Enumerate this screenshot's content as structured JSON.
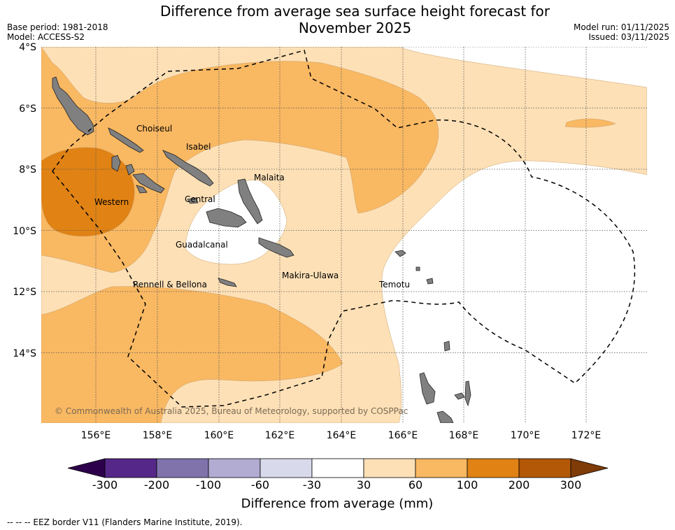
{
  "title": {
    "line1": "Difference from average sea surface height forecast for",
    "line2": "November 2025"
  },
  "meta": {
    "base_period": "Base period: 1981-2018",
    "model": "Model: ACCESS-S2",
    "model_run": "Model run: 01/11/2025",
    "issued": "Issued: 03/11/2025"
  },
  "map": {
    "lat_labels": [
      "4°S",
      "6°S",
      "8°S",
      "10°S",
      "12°S",
      "14°S"
    ],
    "lon_labels": [
      "156°E",
      "158°E",
      "160°E",
      "162°E",
      "164°E",
      "166°E",
      "168°E",
      "170°E",
      "172°E"
    ],
    "regions": [
      "Choiseul",
      "Isabel",
      "Malaita",
      "Western",
      "Central",
      "Guadalcanal",
      "Rennell & Bellona",
      "Makira-Ulawa",
      "Temotu"
    ],
    "copyright": "© Commonwealth of Australia 2025, Bureau of Meteorology, supported by COSPPac"
  },
  "colorbar": {
    "ticks": [
      "-300",
      "-200",
      "-100",
      "-60",
      "-30",
      "30",
      "60",
      "100",
      "200",
      "300"
    ],
    "colors": [
      "#542788",
      "#8073ac",
      "#b2abd2",
      "#d8daeb",
      "#ffffff",
      "#fde0b6",
      "#f9b862",
      "#e08214",
      "#b35806"
    ],
    "under_color": "#2d004b",
    "over_color": "#7f3b08",
    "title": "Difference from average (mm)"
  },
  "footnote": "--  --  -- EEZ border V11 (Flanders Marine Institute, 2019)."
}
